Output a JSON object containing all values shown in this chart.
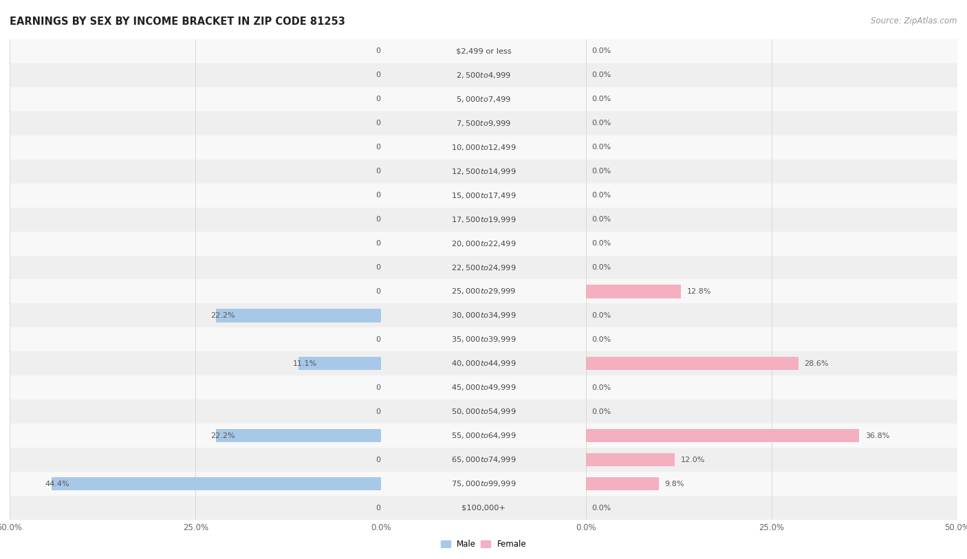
{
  "title": "EARNINGS BY SEX BY INCOME BRACKET IN ZIP CODE 81253",
  "source": "Source: ZipAtlas.com",
  "categories": [
    "$2,499 or less",
    "$2,500 to $4,999",
    "$5,000 to $7,499",
    "$7,500 to $9,999",
    "$10,000 to $12,499",
    "$12,500 to $14,999",
    "$15,000 to $17,499",
    "$17,500 to $19,999",
    "$20,000 to $22,499",
    "$22,500 to $24,999",
    "$25,000 to $29,999",
    "$30,000 to $34,999",
    "$35,000 to $39,999",
    "$40,000 to $44,999",
    "$45,000 to $49,999",
    "$50,000 to $54,999",
    "$55,000 to $64,999",
    "$65,000 to $74,999",
    "$75,000 to $99,999",
    "$100,000+"
  ],
  "male_values": [
    0.0,
    0.0,
    0.0,
    0.0,
    0.0,
    0.0,
    0.0,
    0.0,
    0.0,
    0.0,
    0.0,
    22.2,
    0.0,
    11.1,
    0.0,
    0.0,
    22.2,
    0.0,
    44.4,
    0.0
  ],
  "female_values": [
    0.0,
    0.0,
    0.0,
    0.0,
    0.0,
    0.0,
    0.0,
    0.0,
    0.0,
    0.0,
    12.8,
    0.0,
    0.0,
    28.6,
    0.0,
    0.0,
    36.8,
    12.0,
    9.8,
    0.0
  ],
  "male_color": "#a8c8e8",
  "female_color": "#f4afc0",
  "male_label": "Male",
  "female_label": "Female",
  "xlim": 50.0,
  "row_bg_even": "#efefef",
  "row_bg_odd": "#f8f8f8",
  "title_fontsize": 10.5,
  "source_fontsize": 8.5,
  "tick_fontsize": 8.5,
  "value_fontsize": 8.0,
  "category_fontsize": 8.2,
  "bar_height": 0.55
}
